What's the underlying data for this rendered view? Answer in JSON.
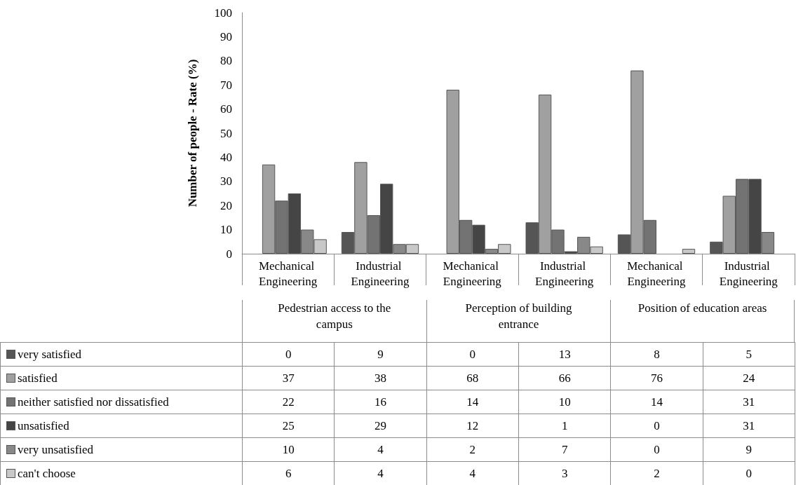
{
  "chart_data": {
    "type": "bar",
    "ylabel": "Number of people - Rate (%)",
    "categories": [
      "Mechanical Engineering",
      "Industrial Engineering",
      "Mechanical Engineering",
      "Industrial Engineering",
      "Mechanical Engineering",
      "Industrial Engineering"
    ],
    "annotations": [
      "Pedestrian access to the campus",
      "Perception of building entrance",
      "Position of education areas"
    ],
    "series": [
      {
        "name": "very satisfied",
        "color": "#555555",
        "values": [
          0,
          9,
          0,
          13,
          8,
          5
        ]
      },
      {
        "name": "satisfied",
        "color": "#a0a0a0",
        "values": [
          37,
          38,
          68,
          66,
          76,
          24
        ]
      },
      {
        "name": "neither satisfied nor dissatisfied",
        "color": "#737373",
        "values": [
          22,
          16,
          14,
          10,
          14,
          31
        ]
      },
      {
        "name": "unsatisfied",
        "color": "#454545",
        "values": [
          25,
          29,
          12,
          1,
          0,
          31
        ]
      },
      {
        "name": "very unsatisfied",
        "color": "#888888",
        "values": [
          10,
          4,
          2,
          7,
          0,
          9
        ]
      },
      {
        "name": "can't choose",
        "color": "#c8c8c8",
        "values": [
          6,
          4,
          4,
          3,
          2,
          0
        ]
      }
    ],
    "ylim": [
      0,
      100
    ],
    "yticks": [
      0,
      10,
      20,
      30,
      40,
      50,
      60,
      70,
      80,
      90,
      100
    ],
    "grid": false,
    "data_labels": true,
    "legend": "bottom"
  }
}
